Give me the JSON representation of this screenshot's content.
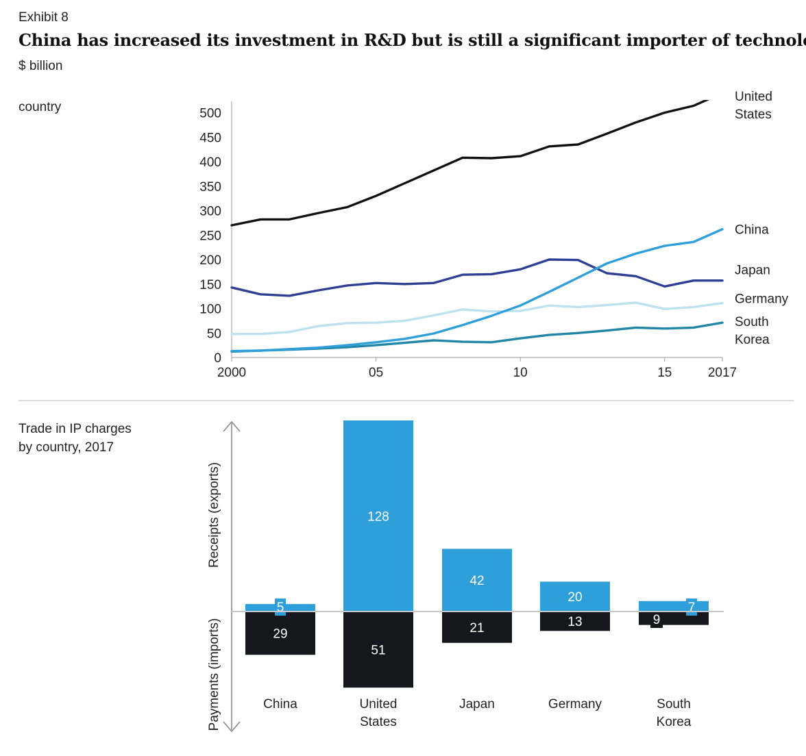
{
  "header": {
    "exhibit": "Exhibit 8",
    "title": "China has increased its investment in R&D but is still a significant importer of technology.",
    "unit": "$ billion"
  },
  "line_panel": {
    "label": "country"
  },
  "bar_panel": {
    "label_line1": "Trade in IP charges",
    "label_line2": "by country, 2017",
    "up_axis_label": "Receipts (exports)",
    "down_axis_label": "Payments (imports)"
  },
  "colors": {
    "united_states": "#111111",
    "china": "#2f9fd9",
    "japan": "#2f3f93",
    "germany": "#bfe2f1",
    "south_korea": "#2287a7",
    "receipts": "#2f9fd9",
    "payments": "#15171d"
  },
  "chart_data": [
    {
      "type": "line",
      "x": [
        2000,
        2001,
        2002,
        2003,
        2004,
        2005,
        2006,
        2007,
        2008,
        2009,
        2010,
        2011,
        2012,
        2013,
        2014,
        2015,
        2016,
        2017
      ],
      "x_tick_labels": [
        {
          "x": 2000,
          "label": "2000"
        },
        {
          "x": 2005,
          "label": "05"
        },
        {
          "x": 2010,
          "label": "10"
        },
        {
          "x": 2015,
          "label": "15"
        },
        {
          "x": 2017,
          "label": "2017"
        }
      ],
      "y_ticks": [
        0,
        50,
        100,
        150,
        200,
        250,
        300,
        350,
        400,
        450,
        500
      ],
      "ylim": [
        0,
        525
      ],
      "series": [
        {
          "name": "United States",
          "label_lines": [
            "United",
            "States"
          ],
          "color_key": "united_states",
          "values": [
            270,
            282,
            282,
            295,
            307,
            330,
            356,
            382,
            408,
            407,
            411,
            431,
            435,
            457,
            480,
            500,
            514,
            540
          ]
        },
        {
          "name": "China",
          "label_lines": [
            "China"
          ],
          "color_key": "china",
          "values": [
            13,
            14,
            17,
            20,
            25,
            31,
            38,
            49,
            66,
            85,
            106,
            134,
            163,
            192,
            212,
            228,
            236,
            262
          ]
        },
        {
          "name": "Japan",
          "label_lines": [
            "Japan"
          ],
          "color_key": "japan",
          "values": [
            143,
            129,
            126,
            137,
            147,
            152,
            150,
            152,
            169,
            170,
            180,
            200,
            199,
            172,
            166,
            145,
            157,
            157
          ]
        },
        {
          "name": "Germany",
          "label_lines": [
            "Germany"
          ],
          "color_key": "germany",
          "values": [
            48,
            48,
            52,
            64,
            70,
            71,
            75,
            86,
            98,
            94,
            95,
            106,
            103,
            107,
            112,
            99,
            103,
            111
          ]
        },
        {
          "name": "South Korea",
          "label_lines": [
            "South",
            "Korea"
          ],
          "color_key": "south_korea",
          "values": [
            12,
            14,
            16,
            18,
            21,
            25,
            30,
            35,
            32,
            31,
            39,
            46,
            50,
            55,
            61,
            59,
            61,
            71
          ]
        }
      ]
    },
    {
      "type": "bar",
      "categories": [
        "China",
        "United States",
        "Japan",
        "Germany",
        "South Korea"
      ],
      "category_label_lines": [
        [
          "China"
        ],
        [
          "United",
          "States"
        ],
        [
          "Japan"
        ],
        [
          "Germany"
        ],
        [
          "South",
          "Korea"
        ]
      ],
      "series": [
        {
          "name": "Receipts (exports)",
          "color_key": "receipts",
          "values": [
            5,
            128,
            42,
            20,
            7
          ]
        },
        {
          "name": "Payments (imports)",
          "color_key": "payments",
          "values": [
            29,
            51,
            21,
            13,
            9
          ]
        }
      ]
    }
  ]
}
